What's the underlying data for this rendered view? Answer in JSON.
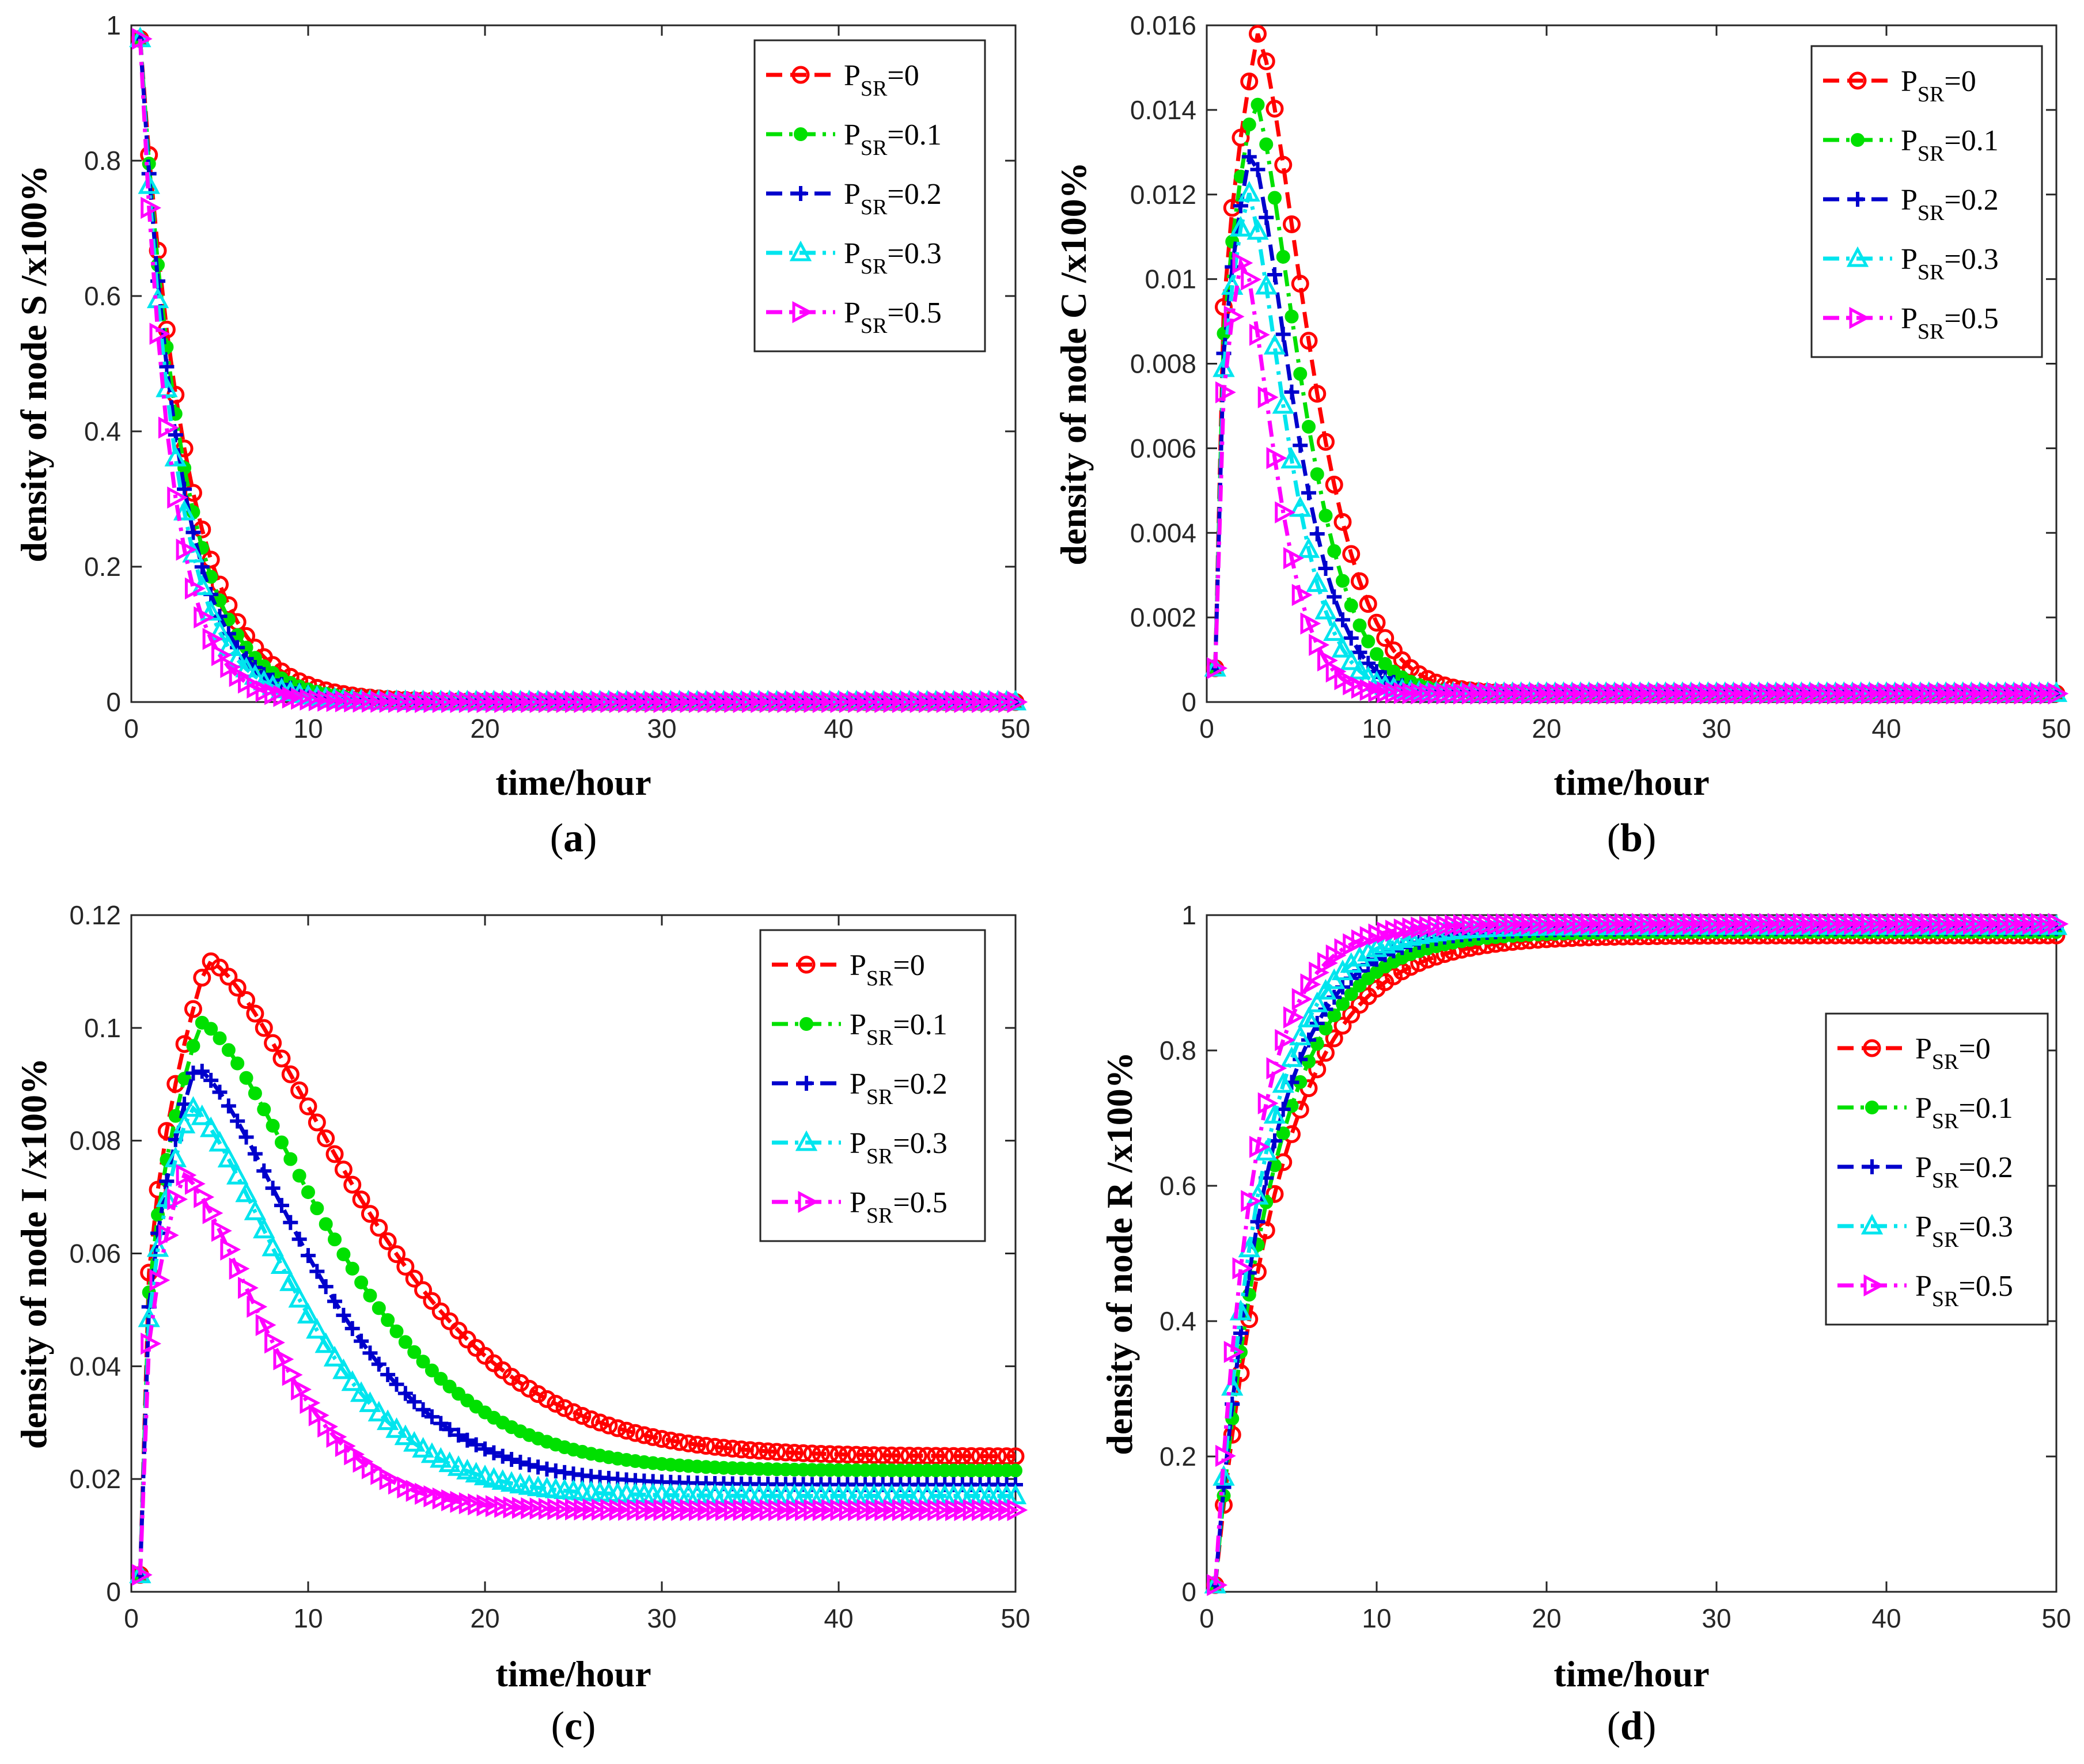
{
  "figure": {
    "legend_base": "P",
    "legend_sub": "SR",
    "colors": [
      "#ff0000",
      "#00e000",
      "#0000cc",
      "#00e5ee",
      "#ff00ff"
    ],
    "markers": [
      "circle",
      "dot",
      "plus",
      "triangle-up",
      "triangle-right"
    ]
  },
  "chart_data": [
    {
      "type": "line",
      "panel": "a",
      "caption_letter": "a",
      "xlabel": "time/hour",
      "ylabel": "density of node S /x100%",
      "xlim": [
        0,
        50
      ],
      "ylim": [
        0,
        1
      ],
      "xticks": [
        0,
        10,
        20,
        30,
        40,
        50
      ],
      "yticks": [
        0,
        0.2,
        0.4,
        0.6,
        0.8,
        1
      ],
      "ytick_labels": [
        "0",
        "0.2",
        "0.4",
        "0.6",
        "0.8",
        "1"
      ],
      "legend_position": "top-right",
      "legend": [
        "=0",
        "=0.1",
        "=0.2",
        "=0.3",
        "=0.5"
      ],
      "series": [
        {
          "name": "PSR=0",
          "model": {
            "kind": "decay",
            "start": 0.98,
            "tau": 2.6
          }
        },
        {
          "name": "PSR=0.1",
          "model": {
            "kind": "decay",
            "start": 0.98,
            "tau": 2.4
          }
        },
        {
          "name": "PSR=0.2",
          "model": {
            "kind": "decay",
            "start": 0.98,
            "tau": 2.2
          }
        },
        {
          "name": "PSR=0.3",
          "model": {
            "kind": "decay",
            "start": 0.98,
            "tau": 2.0
          }
        },
        {
          "name": "PSR=0.5",
          "model": {
            "kind": "decay",
            "start": 0.98,
            "tau": 1.7
          }
        }
      ]
    },
    {
      "type": "line",
      "panel": "b",
      "caption_letter": "b",
      "xlabel": "time/hour",
      "ylabel": "density of node C /x100%",
      "xlim": [
        0,
        50
      ],
      "ylim": [
        0,
        0.016
      ],
      "xticks": [
        0,
        10,
        20,
        30,
        40,
        50
      ],
      "yticks": [
        0,
        0.002,
        0.004,
        0.006,
        0.008,
        0.01,
        0.012,
        0.014,
        0.016
      ],
      "ytick_labels": [
        "0",
        "0.002",
        "0.004",
        "0.006",
        "0.008",
        "0.01",
        "0.012",
        "0.014",
        "0.016"
      ],
      "legend_position": "top-right",
      "legend": [
        "=0",
        "=0.1",
        "=0.2",
        "=0.3",
        "=0.5"
      ],
      "series": [
        {
          "name": "PSR=0",
          "model": {
            "kind": "peak",
            "start": 0.0008,
            "peak": 0.0158,
            "tpeak": 3.0,
            "sigma": 4.1,
            "tail": 0.0002
          }
        },
        {
          "name": "PSR=0.1",
          "model": {
            "kind": "peak",
            "start": 0.0008,
            "peak": 0.0143,
            "tpeak": 2.8,
            "sigma": 3.7,
            "tail": 0.0002
          }
        },
        {
          "name": "PSR=0.2",
          "model": {
            "kind": "peak",
            "start": 0.0008,
            "peak": 0.0131,
            "tpeak": 2.6,
            "sigma": 3.4,
            "tail": 0.0002
          }
        },
        {
          "name": "PSR=0.3",
          "model": {
            "kind": "peak",
            "start": 0.0008,
            "peak": 0.0121,
            "tpeak": 2.4,
            "sigma": 3.1,
            "tail": 0.0002
          }
        },
        {
          "name": "PSR=0.5",
          "model": {
            "kind": "peak",
            "start": 0.0008,
            "peak": 0.0106,
            "tpeak": 2.1,
            "sigma": 2.6,
            "tail": 0.0002
          }
        }
      ]
    },
    {
      "type": "line",
      "panel": "c",
      "caption_letter": "c",
      "xlabel": "time/hour",
      "ylabel": "density of node I /x100%",
      "xlim": [
        0,
        50
      ],
      "ylim": [
        0,
        0.12
      ],
      "xticks": [
        0,
        10,
        20,
        30,
        40,
        50
      ],
      "yticks": [
        0,
        0.02,
        0.04,
        0.06,
        0.08,
        0.1,
        0.12
      ],
      "ytick_labels": [
        "0",
        "0.02",
        "0.04",
        "0.06",
        "0.08",
        "0.1",
        "0.12"
      ],
      "legend_position": "top-right",
      "legend": [
        "=0",
        "=0.1",
        "=0.2",
        "=0.3",
        "=0.5"
      ],
      "series": [
        {
          "name": "PSR=0",
          "model": {
            "kind": "peak",
            "start": 0.003,
            "peak": 0.112,
            "tpeak": 4.3,
            "sigma": 11.5,
            "tail": 0.024
          }
        },
        {
          "name": "PSR=0.1",
          "model": {
            "kind": "peak",
            "start": 0.003,
            "peak": 0.101,
            "tpeak": 3.9,
            "sigma": 10.0,
            "tail": 0.0215
          }
        },
        {
          "name": "PSR=0.2",
          "model": {
            "kind": "peak",
            "start": 0.003,
            "peak": 0.093,
            "tpeak": 3.6,
            "sigma": 9.0,
            "tail": 0.019
          }
        },
        {
          "name": "PSR=0.3",
          "model": {
            "kind": "peak",
            "start": 0.003,
            "peak": 0.086,
            "tpeak": 3.3,
            "sigma": 8.0,
            "tail": 0.017
          }
        },
        {
          "name": "PSR=0.5",
          "model": {
            "kind": "peak",
            "start": 0.003,
            "peak": 0.074,
            "tpeak": 2.9,
            "sigma": 6.5,
            "tail": 0.0145
          }
        }
      ]
    },
    {
      "type": "line",
      "panel": "d",
      "caption_letter": "d",
      "xlabel": "time/hour",
      "ylabel": "density of node R /x100%",
      "xlim": [
        0,
        50
      ],
      "ylim": [
        0,
        1
      ],
      "xticks": [
        0,
        10,
        20,
        30,
        40,
        50
      ],
      "yticks": [
        0,
        0.2,
        0.4,
        0.6,
        0.8,
        1
      ],
      "ytick_labels": [
        "0",
        "0.2",
        "0.4",
        "0.6",
        "0.8",
        "1"
      ],
      "legend_position": "center-right",
      "legend": [
        "=0",
        "=0.1",
        "=0.2",
        "=0.3",
        "=0.5"
      ],
      "series": [
        {
          "name": "PSR=0",
          "model": {
            "kind": "rise",
            "start": 0.01,
            "plateau": 0.97,
            "tau": 3.8
          }
        },
        {
          "name": "PSR=0.1",
          "model": {
            "kind": "rise",
            "start": 0.01,
            "plateau": 0.975,
            "tau": 3.4
          }
        },
        {
          "name": "PSR=0.2",
          "model": {
            "kind": "rise",
            "start": 0.01,
            "plateau": 0.98,
            "tau": 3.1
          }
        },
        {
          "name": "PSR=0.3",
          "model": {
            "kind": "rise",
            "start": 0.01,
            "plateau": 0.983,
            "tau": 2.8
          }
        },
        {
          "name": "PSR=0.5",
          "model": {
            "kind": "rise",
            "start": 0.01,
            "plateau": 0.987,
            "tau": 2.3
          }
        }
      ]
    }
  ]
}
